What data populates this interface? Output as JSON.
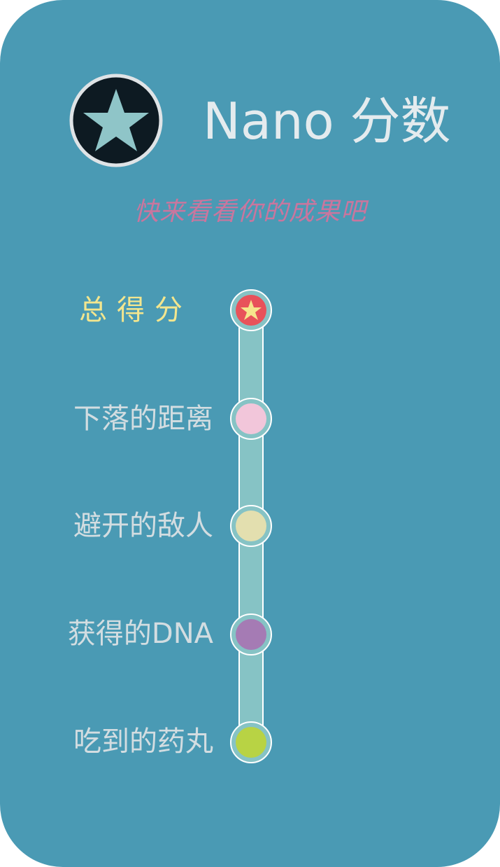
{
  "header": {
    "title": "Nano 分数",
    "subtitle": "快来看看你的成果吧",
    "badge_icon": "star-icon"
  },
  "score_rows": [
    {
      "label": "总得分",
      "dot_color": "#e8525a",
      "icon": "star-icon"
    },
    {
      "label": "下落的距离",
      "dot_color": "#f2c6da"
    },
    {
      "label": "避开的敌人",
      "dot_color": "#e3dfaf"
    },
    {
      "label": "获得的DNA",
      "dot_color": "#a57bb4"
    },
    {
      "label": "吃到的药丸",
      "dot_color": "#b8d344"
    }
  ],
  "colors": {
    "background": "#4a9ab4",
    "track": "#86c3c5",
    "title_text": "#e4ebee",
    "subtitle_text": "#c9769e",
    "total_label": "#f3e68e",
    "row_label": "#d3dde1",
    "badge_circle": "#0d1a22",
    "badge_star": "#8fc5c8"
  }
}
